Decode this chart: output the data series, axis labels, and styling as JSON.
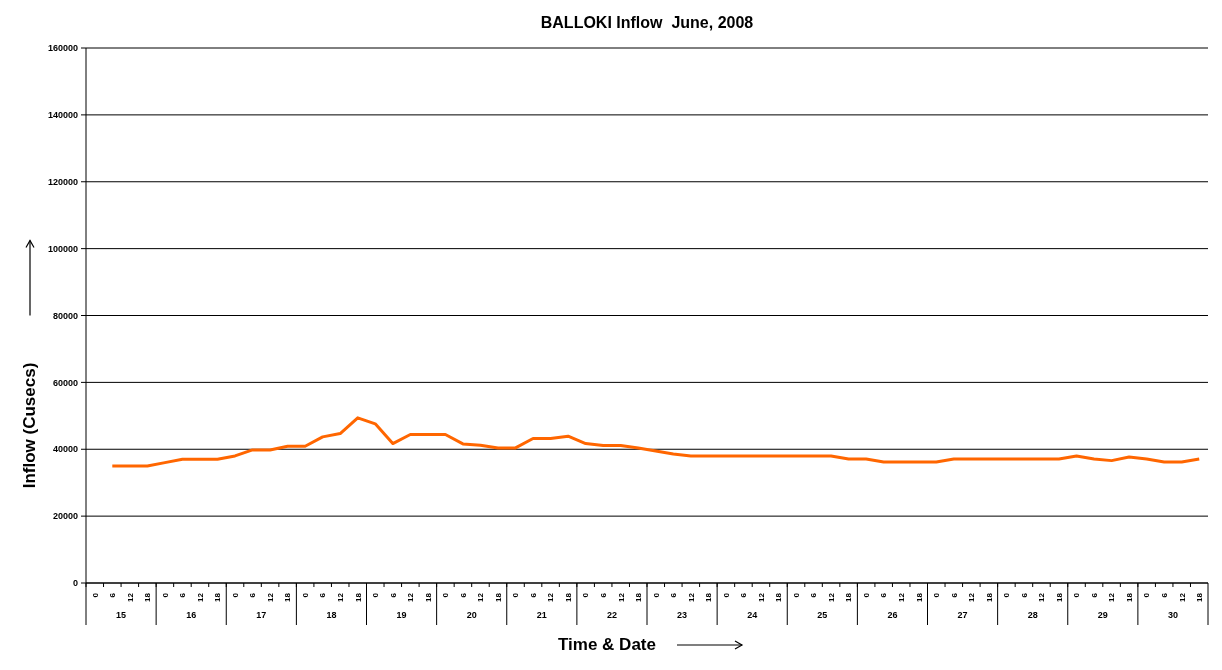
{
  "chart_data": {
    "type": "line",
    "title": "BALLOKI Inflow  June, 2008",
    "xlabel": "Time & Date",
    "ylabel": "Inflow (Cusecs)",
    "categories": [
      "0",
      "6",
      "12",
      "18",
      "0",
      "6",
      "12",
      "18",
      "0",
      "6",
      "12",
      "18",
      "0",
      "6",
      "12",
      "18",
      "0",
      "6",
      "12",
      "18",
      "0",
      "6",
      "12",
      "18",
      "0",
      "6",
      "12",
      "18",
      "0",
      "6",
      "12",
      "18",
      "0",
      "6",
      "12",
      "18",
      "0",
      "6",
      "12",
      "18",
      "0",
      "6",
      "12",
      "18",
      "0",
      "6",
      "12",
      "18",
      "0",
      "6",
      "12",
      "18",
      "0",
      "6",
      "12",
      "18",
      "0",
      "6",
      "12",
      "18",
      "0",
      "6",
      "12",
      "18"
    ],
    "annotations": [
      "15",
      "16",
      "17",
      "18",
      "19",
      "20",
      "21",
      "22",
      "23",
      "24",
      "25",
      "26",
      "27",
      "28",
      "29",
      "30"
    ],
    "series": [
      {
        "color": "#ff6600",
        "values": [
          null,
          35000,
          35000,
          35000,
          36000,
          37000,
          37000,
          37000,
          38000,
          39800,
          39800,
          40900,
          40900,
          43700,
          44700,
          49400,
          47600,
          41700,
          44400,
          44400,
          44400,
          41600,
          41200,
          40400,
          40400,
          43200,
          43200,
          43900,
          41700,
          41100,
          41100,
          40400,
          39500,
          38600,
          38000,
          38000,
          38000,
          38000,
          38000,
          38000,
          38000,
          38000,
          38000,
          37100,
          37100,
          36200,
          36200,
          36200,
          36200,
          37100,
          37100,
          37100,
          37100,
          37100,
          37100,
          37100,
          38000,
          37100,
          36600,
          37700,
          37100,
          36200,
          36200,
          37100
        ]
      }
    ],
    "ylim": [
      0,
      160000
    ],
    "yticks": [
      0,
      20000,
      40000,
      60000,
      80000,
      100000,
      120000,
      140000,
      160000
    ],
    "grid": "y",
    "marker": "none",
    "line_style": "solid"
  }
}
